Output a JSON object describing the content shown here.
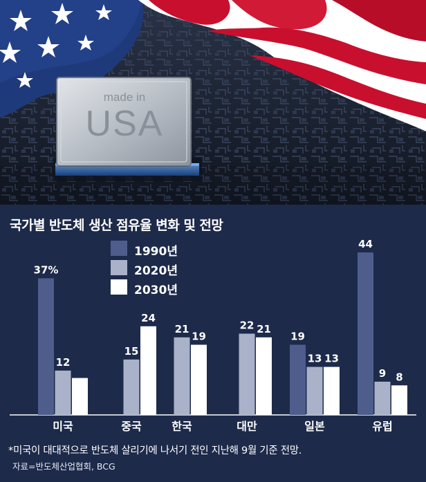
{
  "hero": {
    "chip_text_small": "made in",
    "chip_text_large": "USA"
  },
  "chart_data": {
    "type": "bar",
    "title": "국가별 반도체 생산 점유율 변화 및 전망",
    "categories": [
      "미국",
      "중국",
      "한국",
      "대만",
      "일본",
      "유럽"
    ],
    "series": [
      {
        "name": "1990년",
        "values": [
          37,
          0,
          0,
          0,
          19,
          44
        ],
        "labels": [
          "37%",
          "",
          "",
          "",
          "19",
          "44"
        ],
        "color": "#4e5d8c"
      },
      {
        "name": "2020년",
        "values": [
          12,
          15,
          21,
          22,
          13,
          9
        ],
        "labels": [
          "12",
          "15",
          "21",
          "22",
          "13",
          "9"
        ],
        "color": "#a9b2c9"
      },
      {
        "name": "2030년",
        "values": [
          10,
          24,
          19,
          21,
          13,
          8
        ],
        "labels": [
          "",
          "24",
          "19",
          "21",
          "13",
          "8"
        ],
        "color": "#ffffff"
      }
    ],
    "ylim": [
      0,
      44
    ],
    "footnote": "*미국이 대대적으로 반도체 살리기에 나서기 전인 지난해 9월 기준 전망.",
    "source": "자료=반도체산업협회, BCG"
  },
  "colors": {
    "background": "#1d2a4a",
    "series_1990": "#4e5d8c",
    "series_2020": "#a9b2c9",
    "series_2030": "#ffffff"
  }
}
